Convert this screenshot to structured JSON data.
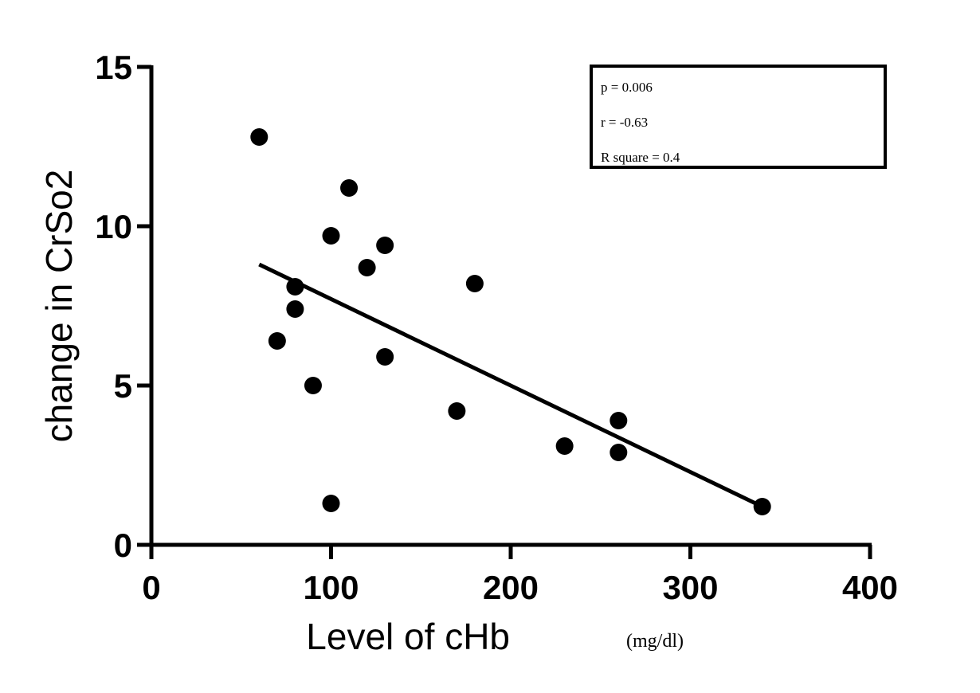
{
  "chart_data": {
    "type": "scatter",
    "xlabel": "Level of cHb",
    "xlabel_unit": "(mg/dl)",
    "ylabel": "change in CrSo2",
    "xlim": [
      0,
      400
    ],
    "ylim": [
      0,
      15
    ],
    "x_ticks": [
      "0",
      "100",
      "200",
      "300",
      "400"
    ],
    "y_ticks": [
      "0",
      "5",
      "10",
      "15"
    ],
    "grid": false,
    "points": [
      {
        "x": 60,
        "y": 12.8
      },
      {
        "x": 110,
        "y": 11.2
      },
      {
        "x": 100,
        "y": 9.7
      },
      {
        "x": 130,
        "y": 9.4
      },
      {
        "x": 120,
        "y": 8.7
      },
      {
        "x": 180,
        "y": 8.2
      },
      {
        "x": 80,
        "y": 8.1
      },
      {
        "x": 80,
        "y": 7.4
      },
      {
        "x": 70,
        "y": 6.4
      },
      {
        "x": 130,
        "y": 5.9
      },
      {
        "x": 90,
        "y": 5.0
      },
      {
        "x": 170,
        "y": 4.2
      },
      {
        "x": 260,
        "y": 3.9
      },
      {
        "x": 230,
        "y": 3.1
      },
      {
        "x": 260,
        "y": 2.9
      },
      {
        "x": 100,
        "y": 1.3
      },
      {
        "x": 340,
        "y": 1.2
      }
    ],
    "regression_line": {
      "x": [
        60,
        340
      ],
      "y": [
        8.8,
        1.2
      ]
    },
    "stats": [
      "p = 0.006",
      "r = -0.63",
      "R square = 0.4"
    ],
    "stats_box_position": "top-right"
  }
}
